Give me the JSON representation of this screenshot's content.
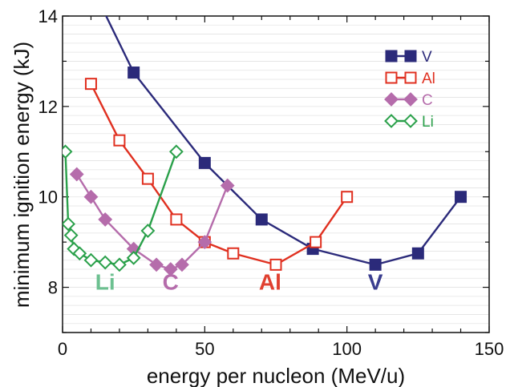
{
  "chart_data": {
    "type": "line",
    "xlabel": "energy per nucleon (MeV/u)",
    "ylabel": "minimum ignition energy (kJ)",
    "xlim": [
      0,
      150
    ],
    "ylim": [
      7,
      14
    ],
    "x_ticks": [
      0,
      50,
      100,
      150
    ],
    "y_ticks": [
      8,
      10,
      12,
      14
    ],
    "grid": "horizontal minor gridlines",
    "legend_position": "top-right",
    "series": [
      {
        "name": "V",
        "color": "#2b2a7a",
        "marker": "filled-square",
        "x": [
          13,
          25,
          50,
          70,
          88,
          110,
          125,
          140
        ],
        "y": [
          14.3,
          12.75,
          10.75,
          9.5,
          8.85,
          8.5,
          8.75,
          10.0
        ]
      },
      {
        "name": "Al",
        "color": "#e03020",
        "marker": "open-square",
        "x": [
          10,
          20,
          30,
          40,
          50,
          60,
          75,
          89,
          100
        ],
        "y": [
          12.5,
          11.25,
          10.4,
          9.5,
          9.0,
          8.75,
          8.5,
          9.0,
          10.0
        ]
      },
      {
        "name": "C",
        "color": "#b56cab",
        "marker": "filled-diamond",
        "x": [
          5,
          10,
          15,
          25,
          33,
          38,
          42,
          50,
          58
        ],
        "y": [
          10.5,
          10.0,
          9.5,
          8.85,
          8.5,
          8.4,
          8.5,
          9.0,
          10.25
        ]
      },
      {
        "name": "Li",
        "color": "#2aa04a",
        "marker": "open-diamond",
        "x": [
          1,
          2,
          3,
          4,
          6,
          10,
          15,
          20,
          25,
          30,
          40
        ],
        "y": [
          11.0,
          9.4,
          9.15,
          8.85,
          8.75,
          8.6,
          8.55,
          8.5,
          8.65,
          9.25,
          11.0
        ]
      }
    ],
    "annotations": [
      {
        "text": "Li",
        "color": "#6cc090",
        "x": 15,
        "y": 7.95
      },
      {
        "text": "C",
        "color": "#b56cab",
        "x": 38,
        "y": 7.95
      },
      {
        "text": "Al",
        "color": "#e04030",
        "x": 73,
        "y": 7.95
      },
      {
        "text": "V",
        "color": "#3a3d8f",
        "x": 110,
        "y": 7.95
      }
    ]
  }
}
